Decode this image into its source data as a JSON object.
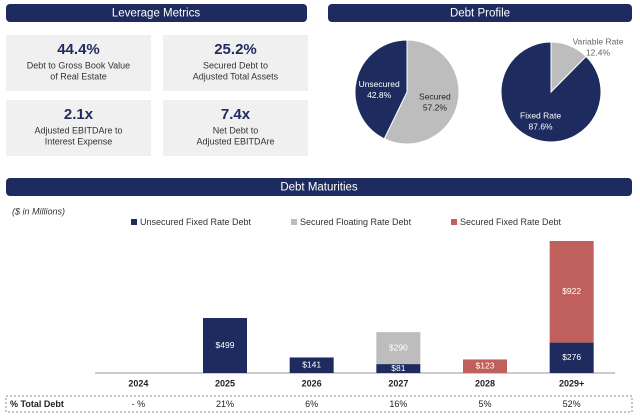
{
  "sections": {
    "leverage": "Leverage Metrics",
    "profile": "Debt Profile",
    "maturities": "Debt Maturities"
  },
  "leverage_metrics": [
    {
      "value": "44.4%",
      "description": [
        "Debt to Gross Book Value",
        "of Real Estate"
      ]
    },
    {
      "value": "25.2%",
      "description": [
        "Secured Debt to",
        "Adjusted Total Assets"
      ]
    },
    {
      "value": "2.1x",
      "description": [
        "Adjusted EBITDAre to",
        "Interest Expense"
      ]
    },
    {
      "value": "7.4x",
      "description": [
        "Net Debt to",
        "Adjusted EBITDAre"
      ]
    }
  ],
  "chart_data": [
    {
      "type": "pie",
      "categories": [
        "Secured",
        "Unsecured"
      ],
      "values": [
        57.2,
        42.8
      ],
      "value_labels": [
        "57.2%",
        "42.8%"
      ],
      "colors": [
        "#bdbdbd",
        "#1e2b5e"
      ]
    },
    {
      "type": "pie",
      "categories": [
        "Variable Rate",
        "Fixed Rate"
      ],
      "values": [
        12.4,
        87.6
      ],
      "value_labels": [
        "12.4%",
        "87.6%"
      ],
      "colors": [
        "#bdbdbd",
        "#1e2b5e"
      ]
    },
    {
      "type": "bar",
      "stacked": true,
      "subtitle": "($ in Millions)",
      "categories": [
        "2024",
        "2025",
        "2026",
        "2027",
        "2028",
        "2029+"
      ],
      "series": [
        {
          "name": "Unsecured Fixed Rate Debt",
          "color": "#1e2b5e",
          "values": [
            null,
            499,
            141,
            81,
            null,
            276
          ],
          "value_labels": [
            null,
            "$499",
            "$141",
            "$81",
            null,
            "$276"
          ]
        },
        {
          "name": "Secured Floating Rate Debt",
          "color": "#bdbdbd",
          "values": [
            null,
            null,
            null,
            290,
            null,
            null
          ],
          "value_labels": [
            null,
            null,
            null,
            "$290",
            null,
            null
          ]
        },
        {
          "name": "Secured Fixed Rate Debt",
          "color": "#c0605c",
          "values": [
            null,
            null,
            null,
            null,
            123,
            922
          ],
          "value_labels": [
            null,
            null,
            null,
            null,
            "$123",
            "$922"
          ]
        }
      ],
      "ylim": [
        0,
        1200
      ]
    }
  ],
  "total_debt": {
    "label": "% Total Debt",
    "cells": [
      "- %",
      "21%",
      "6%",
      "16%",
      "5%",
      "52%"
    ]
  }
}
